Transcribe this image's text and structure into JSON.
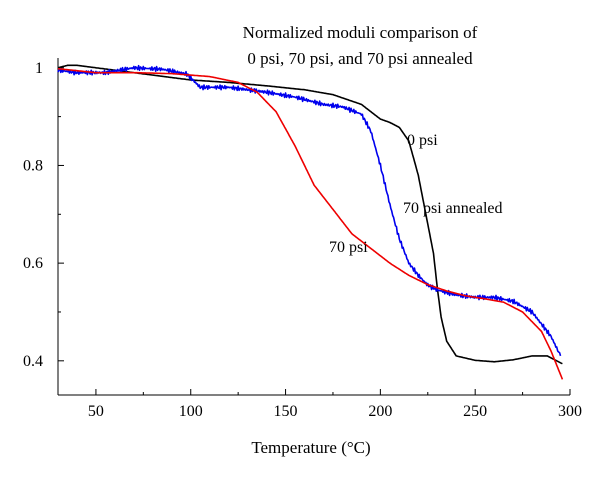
{
  "chart_data": {
    "type": "line",
    "title_lines": [
      "Normalized moduli comparison of",
      "0 psi, 70 psi, and 70 psi annealed"
    ],
    "xlabel": "Temperature (°C)",
    "ylabel": "",
    "xlim": [
      30,
      300
    ],
    "ylim": [
      0.33,
      1.02
    ],
    "x_ticks": [
      50,
      100,
      150,
      200,
      250,
      300
    ],
    "y_ticks": [
      0.4,
      0.6,
      0.8,
      1
    ],
    "x_tick_labels": [
      "50",
      "100",
      "150",
      "200",
      "250",
      "300"
    ],
    "y_tick_labels": [
      "0.4",
      "0.6",
      "0.8",
      "1"
    ],
    "grid": false,
    "legend": "none (inline series labels)",
    "series": [
      {
        "name": "0 psi",
        "color": "#000000",
        "noise": 0,
        "points": [
          [
            30,
            1.0
          ],
          [
            35,
            1.005
          ],
          [
            40,
            1.005
          ],
          [
            60,
            0.995
          ],
          [
            80,
            0.985
          ],
          [
            100,
            0.975
          ],
          [
            120,
            0.97
          ],
          [
            140,
            0.963
          ],
          [
            160,
            0.955
          ],
          [
            175,
            0.945
          ],
          [
            190,
            0.925
          ],
          [
            200,
            0.895
          ],
          [
            205,
            0.888
          ],
          [
            210,
            0.878
          ],
          [
            215,
            0.85
          ],
          [
            220,
            0.78
          ],
          [
            225,
            0.68
          ],
          [
            228,
            0.62
          ],
          [
            230,
            0.55
          ],
          [
            232,
            0.49
          ],
          [
            235,
            0.44
          ],
          [
            240,
            0.41
          ],
          [
            250,
            0.401
          ],
          [
            260,
            0.398
          ],
          [
            270,
            0.402
          ],
          [
            280,
            0.41
          ],
          [
            288,
            0.41
          ],
          [
            293,
            0.4
          ],
          [
            296,
            0.394
          ]
        ]
      },
      {
        "name": "70 psi annealed",
        "color": "#0000ee",
        "noise": 0.005,
        "points": [
          [
            30,
            0.995
          ],
          [
            40,
            0.99
          ],
          [
            55,
            0.99
          ],
          [
            70,
            1.0
          ],
          [
            85,
            0.997
          ],
          [
            98,
            0.987
          ],
          [
            105,
            0.96
          ],
          [
            120,
            0.96
          ],
          [
            140,
            0.95
          ],
          [
            155,
            0.94
          ],
          [
            170,
            0.925
          ],
          [
            180,
            0.92
          ],
          [
            190,
            0.905
          ],
          [
            195,
            0.87
          ],
          [
            200,
            0.8
          ],
          [
            205,
            0.72
          ],
          [
            210,
            0.65
          ],
          [
            215,
            0.6
          ],
          [
            220,
            0.575
          ],
          [
            225,
            0.555
          ],
          [
            230,
            0.545
          ],
          [
            240,
            0.535
          ],
          [
            250,
            0.53
          ],
          [
            260,
            0.53
          ],
          [
            270,
            0.522
          ],
          [
            280,
            0.5
          ],
          [
            290,
            0.45
          ],
          [
            295,
            0.41
          ]
        ]
      },
      {
        "name": "70 psi",
        "color": "#ee0000",
        "noise": 0,
        "points": [
          [
            30,
            0.998
          ],
          [
            50,
            0.99
          ],
          [
            70,
            0.99
          ],
          [
            90,
            0.988
          ],
          [
            110,
            0.982
          ],
          [
            125,
            0.97
          ],
          [
            135,
            0.95
          ],
          [
            145,
            0.91
          ],
          [
            155,
            0.84
          ],
          [
            165,
            0.76
          ],
          [
            175,
            0.71
          ],
          [
            185,
            0.66
          ],
          [
            195,
            0.63
          ],
          [
            205,
            0.6
          ],
          [
            215,
            0.575
          ],
          [
            225,
            0.556
          ],
          [
            235,
            0.543
          ],
          [
            245,
            0.533
          ],
          [
            255,
            0.527
          ],
          [
            265,
            0.52
          ],
          [
            275,
            0.5
          ],
          [
            285,
            0.46
          ],
          [
            290,
            0.42
          ],
          [
            296,
            0.362
          ]
        ]
      }
    ]
  }
}
